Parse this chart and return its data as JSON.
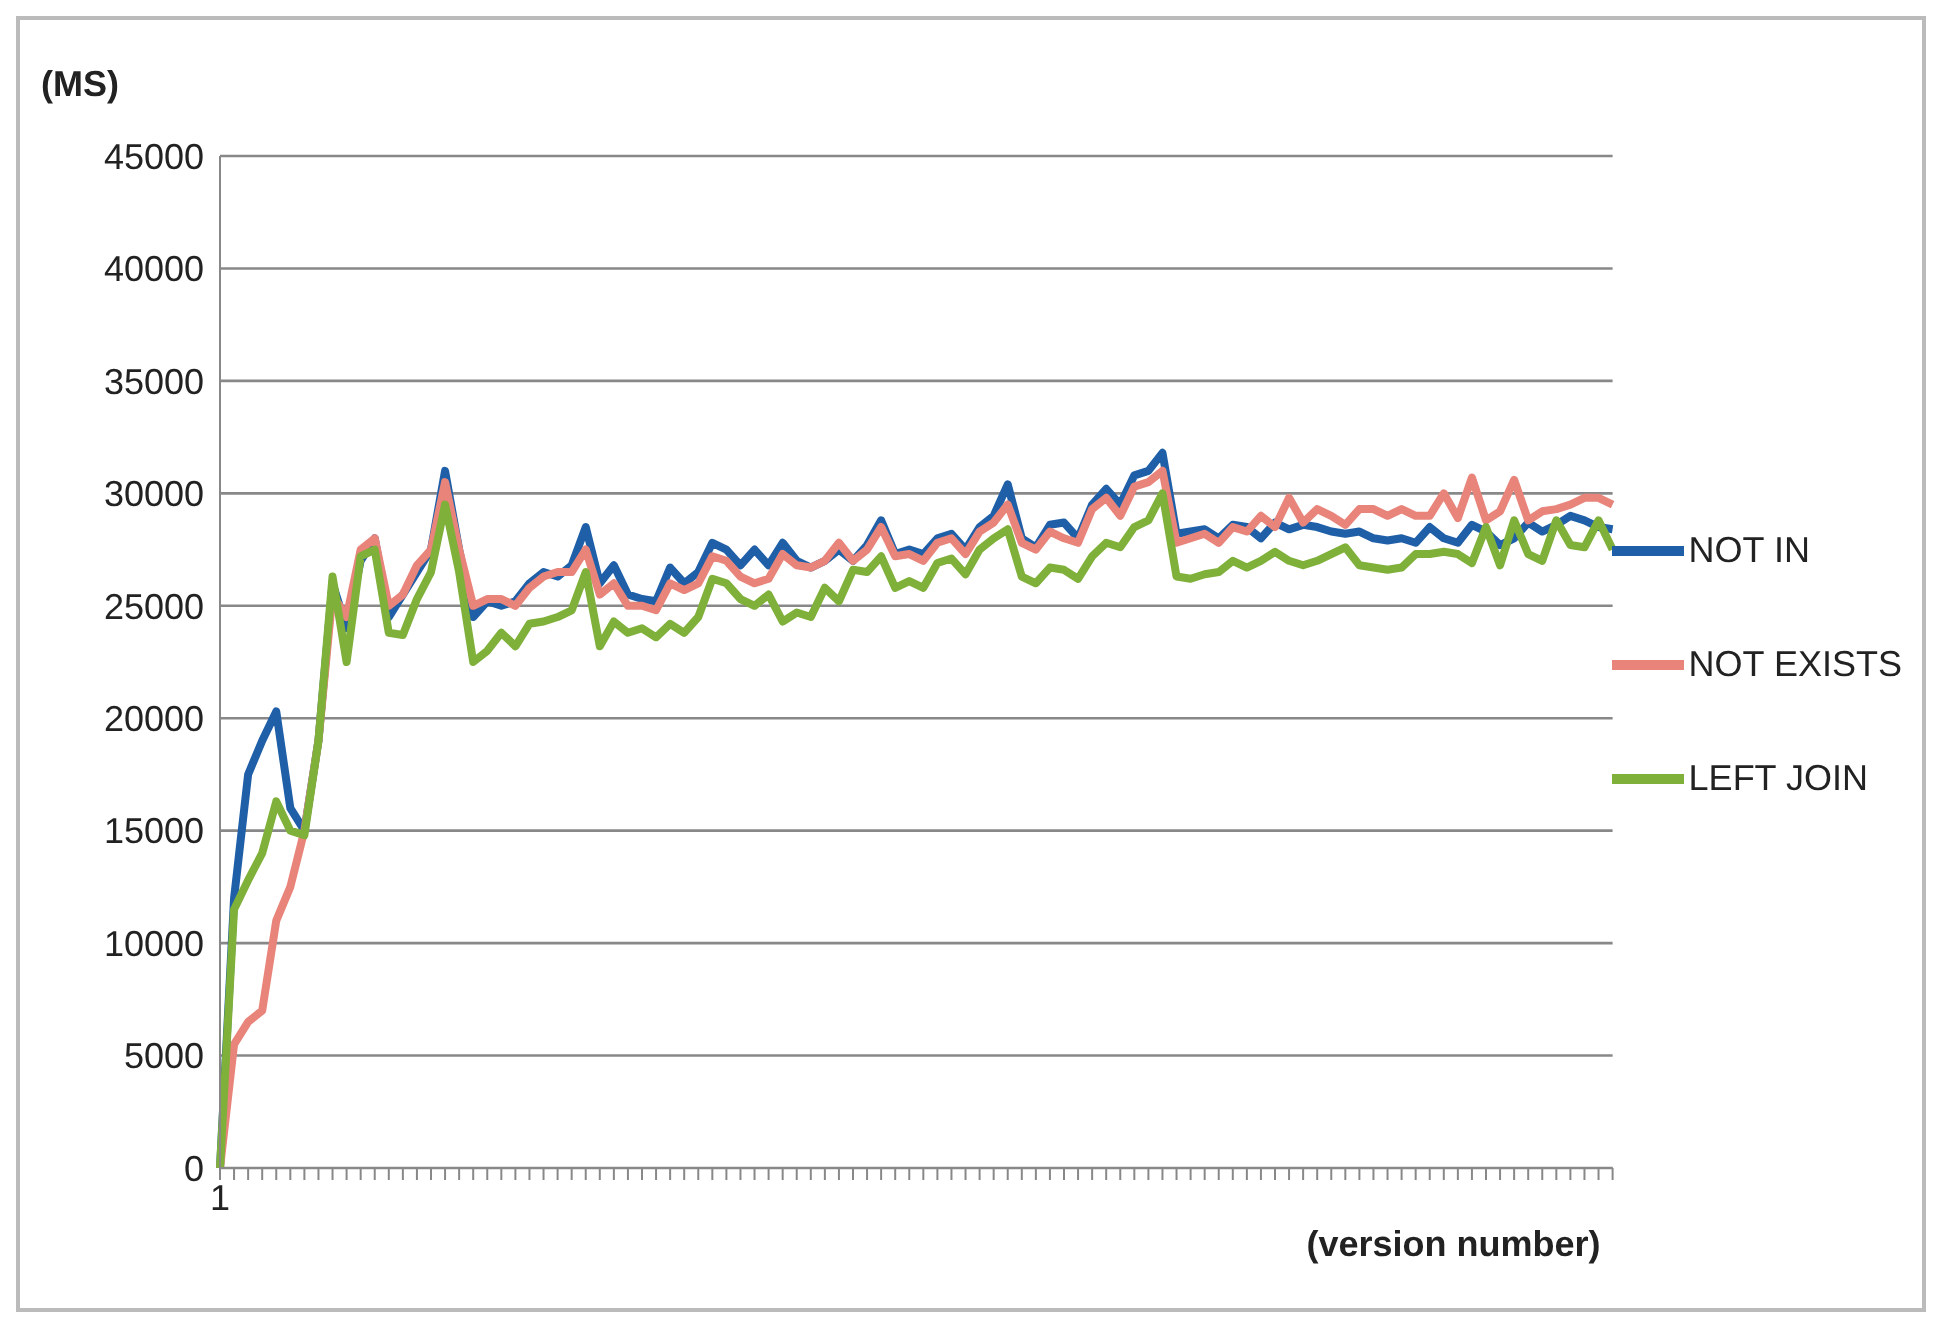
{
  "chart_data": {
    "type": "line",
    "ylabel": "(MS)",
    "xlabel": "(version number)",
    "categories": [
      "1",
      null,
      null,
      null,
      null,
      null,
      null,
      null,
      null,
      null,
      null,
      null,
      null,
      null,
      null,
      null,
      null,
      null,
      null,
      null,
      null,
      null,
      null,
      null,
      null,
      null,
      null,
      null,
      null,
      null,
      null,
      null,
      null,
      null,
      null,
      null,
      null,
      null,
      null,
      null,
      null,
      null,
      null,
      null,
      null,
      null,
      null,
      null,
      null,
      null,
      null,
      null,
      null,
      null,
      null,
      null,
      null,
      null,
      null,
      null,
      null,
      null,
      null,
      null,
      null,
      null,
      null,
      null,
      null,
      null,
      null,
      null,
      null,
      null,
      null,
      null,
      null,
      null,
      null,
      null,
      null,
      null,
      null,
      null,
      null,
      null,
      null,
      null,
      null,
      null,
      null,
      null,
      null,
      null,
      null,
      null,
      null,
      null,
      null,
      null
    ],
    "series": [
      {
        "name": "NOT IN",
        "color": "#1f5fa8",
        "values": [
          0,
          12000,
          17500,
          19000,
          20300,
          16000,
          15000,
          19000,
          26000,
          24000,
          27000,
          28000,
          24500,
          25500,
          26500,
          27500,
          31000,
          27500,
          24500,
          25200,
          25000,
          25200,
          26000,
          26500,
          26300,
          26800,
          28500,
          26000,
          26800,
          25500,
          25300,
          25200,
          26700,
          26000,
          26500,
          27800,
          27500,
          26800,
          27500,
          26800,
          27800,
          27000,
          26700,
          27000,
          27500,
          27000,
          27700,
          28800,
          27300,
          27500,
          27300,
          28000,
          28200,
          27500,
          28500,
          29000,
          30400,
          28000,
          27600,
          28600,
          28700,
          28000,
          29500,
          30200,
          29500,
          30800,
          31000,
          31800,
          28200,
          28300,
          28400,
          28000,
          28600,
          28500,
          28000,
          28700,
          28400,
          28600,
          28500,
          28300,
          28200,
          28300,
          28000,
          27900,
          28000,
          27800,
          28500,
          28000,
          27800,
          28600,
          28300,
          27700,
          28000,
          28700,
          28300,
          28600,
          29000,
          28800,
          28500,
          28400
        ]
      },
      {
        "name": "NOT EXISTS",
        "color": "#e8847a",
        "values": [
          0,
          5500,
          6500,
          7000,
          11000,
          12500,
          15000,
          19000,
          25500,
          24500,
          27500,
          28000,
          25000,
          25500,
          26800,
          27500,
          30500,
          27500,
          25000,
          25300,
          25300,
          25000,
          25800,
          26300,
          26500,
          26500,
          27500,
          25500,
          26000,
          25000,
          25000,
          24800,
          26000,
          25700,
          26000,
          27200,
          27000,
          26300,
          26000,
          26200,
          27300,
          26800,
          26700,
          27000,
          27800,
          27000,
          27500,
          28500,
          27200,
          27300,
          27000,
          27800,
          28000,
          27300,
          28300,
          28700,
          29500,
          27800,
          27500,
          28300,
          28000,
          27800,
          29300,
          29800,
          29000,
          30300,
          30500,
          31000,
          27800,
          28000,
          28200,
          27800,
          28500,
          28300,
          29000,
          28500,
          29800,
          28700,
          29300,
          29000,
          28600,
          29300,
          29300,
          29000,
          29300,
          29000,
          29000,
          30000,
          28900,
          30700,
          28800,
          29200,
          30600,
          28800,
          29200,
          29300,
          29500,
          29800,
          29800,
          29500
        ]
      },
      {
        "name": "LEFT JOIN",
        "color": "#7fb03a",
        "values": [
          0,
          11500,
          12800,
          14000,
          16300,
          15000,
          14800,
          19000,
          26300,
          22500,
          27200,
          27500,
          23800,
          23700,
          25300,
          26500,
          29500,
          26500,
          22500,
          23000,
          23800,
          23200,
          24200,
          24300,
          24500,
          24800,
          26500,
          23200,
          24300,
          23800,
          24000,
          23600,
          24200,
          23800,
          24500,
          26200,
          26000,
          25300,
          25000,
          25500,
          24300,
          24700,
          24500,
          25800,
          25200,
          26600,
          26500,
          27200,
          25800,
          26100,
          25800,
          26900,
          27100,
          26400,
          27500,
          28000,
          28400,
          26300,
          26000,
          26700,
          26600,
          26200,
          27200,
          27800,
          27600,
          28500,
          28800,
          30000,
          26300,
          26200,
          26400,
          26500,
          27000,
          26700,
          27000,
          27400,
          27000,
          26800,
          27000,
          27300,
          27600,
          26800,
          26700,
          26600,
          26700,
          27300,
          27300,
          27400,
          27300,
          26900,
          28500,
          26800,
          28800,
          27300,
          27000,
          28800,
          27700,
          27600,
          28800,
          27500
        ]
      }
    ],
    "ylim": [
      0,
      45000
    ],
    "yticks": [
      0,
      5000,
      10000,
      15000,
      20000,
      25000,
      30000,
      35000,
      40000,
      45000
    ],
    "grid": "y",
    "legend": "right",
    "marker": "none",
    "line_style": "solid"
  }
}
